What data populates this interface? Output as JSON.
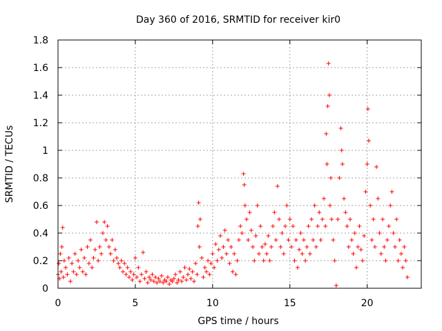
{
  "chart_data": {
    "type": "scatter",
    "title": "Day 360 of 2016, SRMTID for receiver kir0",
    "xlabel": "GPS time / hours",
    "ylabel": "SRMTID / TECUs",
    "xlim": [
      0,
      23.5
    ],
    "ylim": [
      0,
      1.8
    ],
    "xticks": [
      0,
      5,
      10,
      15,
      20
    ],
    "yticks": [
      0,
      0.2,
      0.4,
      0.6,
      0.8,
      1,
      1.2,
      1.4,
      1.6,
      1.8
    ],
    "grid": true,
    "marker": "+",
    "color": "#ff0000",
    "sampling_note": "values read off the chart at approx. 10-minute intervals; dense cloud approximated",
    "series": [
      {
        "name": "kir0",
        "points": [
          [
            0.0,
            0.1
          ],
          [
            0.05,
            0.18
          ],
          [
            0.1,
            0.07
          ],
          [
            0.15,
            0.25
          ],
          [
            0.2,
            0.12
          ],
          [
            0.25,
            0.3
          ],
          [
            0.3,
            0.44
          ],
          [
            0.35,
            0.08
          ],
          [
            0.4,
            0.2
          ],
          [
            0.5,
            0.15
          ],
          [
            0.6,
            0.1
          ],
          [
            0.7,
            0.22
          ],
          [
            0.8,
            0.05
          ],
          [
            0.9,
            0.18
          ],
          [
            1.0,
            0.12
          ],
          [
            1.1,
            0.25
          ],
          [
            1.2,
            0.1
          ],
          [
            1.3,
            0.2
          ],
          [
            1.4,
            0.15
          ],
          [
            1.5,
            0.28
          ],
          [
            1.6,
            0.12
          ],
          [
            1.7,
            0.22
          ],
          [
            1.8,
            0.1
          ],
          [
            1.9,
            0.3
          ],
          [
            2.0,
            0.18
          ],
          [
            2.1,
            0.35
          ],
          [
            2.2,
            0.15
          ],
          [
            2.3,
            0.22
          ],
          [
            2.4,
            0.28
          ],
          [
            2.5,
            0.48
          ],
          [
            2.6,
            0.2
          ],
          [
            2.7,
            0.3
          ],
          [
            2.8,
            0.25
          ],
          [
            2.9,
            0.4
          ],
          [
            3.0,
            0.48
          ],
          [
            3.1,
            0.35
          ],
          [
            3.2,
            0.45
          ],
          [
            3.3,
            0.3
          ],
          [
            3.4,
            0.25
          ],
          [
            3.5,
            0.35
          ],
          [
            3.6,
            0.2
          ],
          [
            3.7,
            0.28
          ],
          [
            3.8,
            0.22
          ],
          [
            3.9,
            0.18
          ],
          [
            4.0,
            0.15
          ],
          [
            4.1,
            0.2
          ],
          [
            4.2,
            0.12
          ],
          [
            4.3,
            0.18
          ],
          [
            4.4,
            0.1
          ],
          [
            4.5,
            0.15
          ],
          [
            4.6,
            0.08
          ],
          [
            4.7,
            0.12
          ],
          [
            4.8,
            0.06
          ],
          [
            4.9,
            0.1
          ],
          [
            5.0,
            0.22
          ],
          [
            5.1,
            0.08
          ],
          [
            5.2,
            0.15
          ],
          [
            5.3,
            0.05
          ],
          [
            5.4,
            0.1
          ],
          [
            5.5,
            0.26
          ],
          [
            5.6,
            0.07
          ],
          [
            5.7,
            0.12
          ],
          [
            5.8,
            0.04
          ],
          [
            5.9,
            0.08
          ],
          [
            6.0,
            0.06
          ],
          [
            6.1,
            0.1
          ],
          [
            6.2,
            0.05
          ],
          [
            6.3,
            0.08
          ],
          [
            6.4,
            0.04
          ],
          [
            6.5,
            0.07
          ],
          [
            6.6,
            0.05
          ],
          [
            6.7,
            0.09
          ],
          [
            6.8,
            0.04
          ],
          [
            6.9,
            0.06
          ],
          [
            7.0,
            0.05
          ],
          [
            7.1,
            0.08
          ],
          [
            7.2,
            0.03
          ],
          [
            7.3,
            0.06
          ],
          [
            7.4,
            0.05
          ],
          [
            7.5,
            0.07
          ],
          [
            7.6,
            0.1
          ],
          [
            7.7,
            0.04
          ],
          [
            7.8,
            0.06
          ],
          [
            7.9,
            0.12
          ],
          [
            8.0,
            0.05
          ],
          [
            8.1,
            0.08
          ],
          [
            8.2,
            0.15
          ],
          [
            8.3,
            0.06
          ],
          [
            8.4,
            0.1
          ],
          [
            8.5,
            0.14
          ],
          [
            8.6,
            0.07
          ],
          [
            8.7,
            0.12
          ],
          [
            8.8,
            0.05
          ],
          [
            8.9,
            0.18
          ],
          [
            9.0,
            0.1
          ],
          [
            9.05,
            0.45
          ],
          [
            9.1,
            0.62
          ],
          [
            9.15,
            0.3
          ],
          [
            9.2,
            0.5
          ],
          [
            9.3,
            0.22
          ],
          [
            9.4,
            0.08
          ],
          [
            9.5,
            0.15
          ],
          [
            9.6,
            0.12
          ],
          [
            9.7,
            0.2
          ],
          [
            9.8,
            0.1
          ],
          [
            9.9,
            0.18
          ],
          [
            10.0,
            0.25
          ],
          [
            10.1,
            0.15
          ],
          [
            10.2,
            0.32
          ],
          [
            10.3,
            0.2
          ],
          [
            10.4,
            0.28
          ],
          [
            10.5,
            0.38
          ],
          [
            10.6,
            0.22
          ],
          [
            10.7,
            0.3
          ],
          [
            10.8,
            0.42
          ],
          [
            10.9,
            0.25
          ],
          [
            11.0,
            0.35
          ],
          [
            11.1,
            0.18
          ],
          [
            11.2,
            0.3
          ],
          [
            11.3,
            0.12
          ],
          [
            11.4,
            0.25
          ],
          [
            11.5,
            0.1
          ],
          [
            11.6,
            0.2
          ],
          [
            11.7,
            0.35
          ],
          [
            11.8,
            0.45
          ],
          [
            11.9,
            0.4
          ],
          [
            12.0,
            0.83
          ],
          [
            12.05,
            0.75
          ],
          [
            12.1,
            0.6
          ],
          [
            12.2,
            0.5
          ],
          [
            12.3,
            0.35
          ],
          [
            12.4,
            0.55
          ],
          [
            12.5,
            0.42
          ],
          [
            12.6,
            0.3
          ],
          [
            12.7,
            0.2
          ],
          [
            12.8,
            0.38
          ],
          [
            12.9,
            0.6
          ],
          [
            13.0,
            0.25
          ],
          [
            13.1,
            0.45
          ],
          [
            13.2,
            0.3
          ],
          [
            13.3,
            0.2
          ],
          [
            13.4,
            0.32
          ],
          [
            13.5,
            0.25
          ],
          [
            13.6,
            0.38
          ],
          [
            13.7,
            0.2
          ],
          [
            13.8,
            0.3
          ],
          [
            13.9,
            0.45
          ],
          [
            14.0,
            0.55
          ],
          [
            14.1,
            0.35
          ],
          [
            14.2,
            0.74
          ],
          [
            14.3,
            0.5
          ],
          [
            14.4,
            0.3
          ],
          [
            14.5,
            0.4
          ],
          [
            14.6,
            0.25
          ],
          [
            14.7,
            0.45
          ],
          [
            14.8,
            0.6
          ],
          [
            14.9,
            0.35
          ],
          [
            15.0,
            0.5
          ],
          [
            15.1,
            0.3
          ],
          [
            15.2,
            0.45
          ],
          [
            15.3,
            0.2
          ],
          [
            15.4,
            0.35
          ],
          [
            15.5,
            0.15
          ],
          [
            15.6,
            0.28
          ],
          [
            15.7,
            0.4
          ],
          [
            15.8,
            0.25
          ],
          [
            15.9,
            0.35
          ],
          [
            16.0,
            0.2
          ],
          [
            16.1,
            0.3
          ],
          [
            16.2,
            0.45
          ],
          [
            16.3,
            0.25
          ],
          [
            16.4,
            0.5
          ],
          [
            16.5,
            0.35
          ],
          [
            16.6,
            0.6
          ],
          [
            16.7,
            0.3
          ],
          [
            16.8,
            0.45
          ],
          [
            16.9,
            0.55
          ],
          [
            17.0,
            0.35
          ],
          [
            17.1,
            0.5
          ],
          [
            17.2,
            0.65
          ],
          [
            17.3,
            0.45
          ],
          [
            17.35,
            1.12
          ],
          [
            17.4,
            0.9
          ],
          [
            17.45,
            1.32
          ],
          [
            17.5,
            1.63
          ],
          [
            17.55,
            1.4
          ],
          [
            17.6,
            0.6
          ],
          [
            17.65,
            0.8
          ],
          [
            17.7,
            0.5
          ],
          [
            17.8,
            0.35
          ],
          [
            17.9,
            0.2
          ],
          [
            18.0,
            0.02
          ],
          [
            18.1,
            0.5
          ],
          [
            18.2,
            0.8
          ],
          [
            18.3,
            1.16
          ],
          [
            18.35,
            1.0
          ],
          [
            18.4,
            0.9
          ],
          [
            18.5,
            0.65
          ],
          [
            18.6,
            0.55
          ],
          [
            18.7,
            0.45
          ],
          [
            18.8,
            0.3
          ],
          [
            18.9,
            0.5
          ],
          [
            19.0,
            0.35
          ],
          [
            19.1,
            0.25
          ],
          [
            19.2,
            0.4
          ],
          [
            19.3,
            0.15
          ],
          [
            19.4,
            0.3
          ],
          [
            19.5,
            0.45
          ],
          [
            19.6,
            0.28
          ],
          [
            19.7,
            0.2
          ],
          [
            19.8,
            0.38
          ],
          [
            19.9,
            0.7
          ],
          [
            20.0,
            0.9
          ],
          [
            20.05,
            1.3
          ],
          [
            20.1,
            1.07
          ],
          [
            20.2,
            0.6
          ],
          [
            20.3,
            0.35
          ],
          [
            20.4,
            0.5
          ],
          [
            20.5,
            0.3
          ],
          [
            20.6,
            0.88
          ],
          [
            20.7,
            0.65
          ],
          [
            20.8,
            0.4
          ],
          [
            20.9,
            0.25
          ],
          [
            21.0,
            0.5
          ],
          [
            21.1,
            0.3
          ],
          [
            21.2,
            0.2
          ],
          [
            21.3,
            0.35
          ],
          [
            21.4,
            0.45
          ],
          [
            21.5,
            0.6
          ],
          [
            21.6,
            0.7
          ],
          [
            21.7,
            0.4
          ],
          [
            21.8,
            0.3
          ],
          [
            21.9,
            0.5
          ],
          [
            22.0,
            0.2
          ],
          [
            22.1,
            0.35
          ],
          [
            22.2,
            0.25
          ],
          [
            22.3,
            0.15
          ],
          [
            22.4,
            0.3
          ],
          [
            22.5,
            0.2
          ],
          [
            22.6,
            0.08
          ]
        ]
      }
    ]
  }
}
